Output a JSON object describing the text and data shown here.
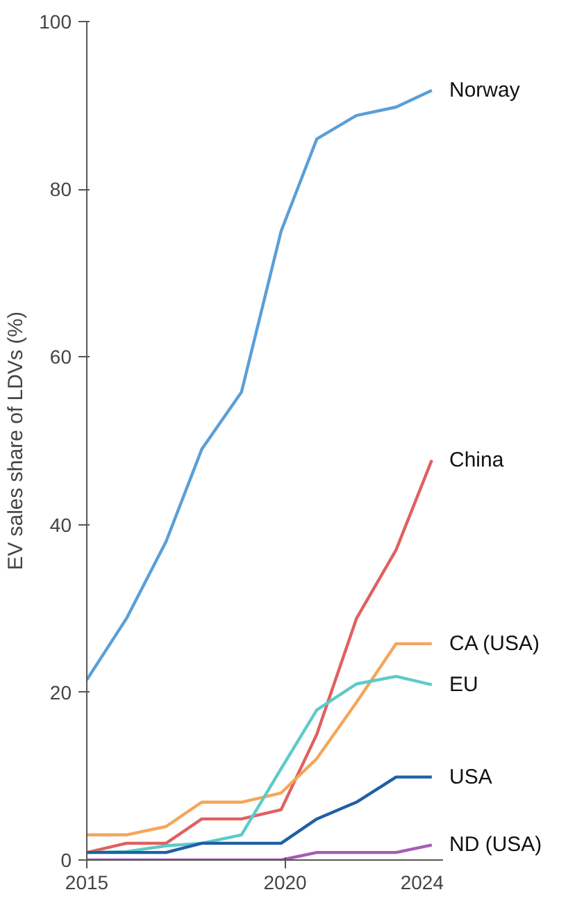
{
  "chart_data": {
    "type": "line",
    "ylabel": "EV sales share of LDVs (%)",
    "x": [
      2015,
      2016,
      2017,
      2017.9,
      2018.9,
      2019.9,
      2020.8,
      2021.8,
      2022.8,
      2023.7
    ],
    "series": [
      {
        "name": "Norway",
        "color": "#5a9fd8",
        "values": [
          21.5,
          28.8,
          38,
          49,
          55.8,
          75,
          86,
          88.8,
          89.8,
          91.8
        ]
      },
      {
        "name": "China",
        "color": "#e0605f",
        "values": [
          0.9,
          2,
          2,
          4.9,
          4.9,
          6,
          15,
          28.8,
          37,
          47.7
        ]
      },
      {
        "name": "CA (USA)",
        "color": "#f6a55a",
        "values": [
          3,
          3,
          4,
          6.9,
          6.9,
          8,
          12.1,
          18.8,
          25.8,
          25.8
        ]
      },
      {
        "name": "EU",
        "color": "#5ccbc8",
        "values": [
          0.9,
          1,
          1.7,
          2,
          3,
          10.9,
          17.9,
          21,
          21.9,
          20.9
        ]
      },
      {
        "name": "USA",
        "color": "#1f5fa6",
        "values": [
          0.9,
          0.9,
          0.9,
          2,
          2,
          2,
          4.9,
          6.9,
          9.9,
          9.9
        ]
      },
      {
        "name": "ND (USA)",
        "color": "#a55cb5",
        "values": [
          0,
          0,
          0,
          0,
          0,
          0,
          0.9,
          0.9,
          0.9,
          1.8
        ]
      }
    ],
    "xlim": [
      2015,
      2024
    ],
    "xticks": [
      2015,
      2020,
      2024
    ],
    "ylim": [
      0,
      100
    ],
    "yticks": [
      0,
      20,
      40,
      60,
      80,
      100
    ],
    "grid": false,
    "marker": "none",
    "line_style": "solid"
  }
}
